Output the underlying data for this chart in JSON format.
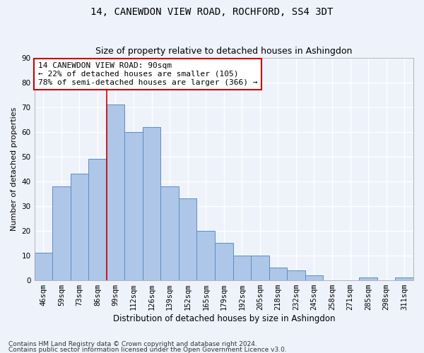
{
  "title": "14, CANEWDON VIEW ROAD, ROCHFORD, SS4 3DT",
  "subtitle": "Size of property relative to detached houses in Ashingdon",
  "xlabel": "Distribution of detached houses by size in Ashingdon",
  "ylabel": "Number of detached properties",
  "categories": [
    "46sqm",
    "59sqm",
    "73sqm",
    "86sqm",
    "99sqm",
    "112sqm",
    "126sqm",
    "139sqm",
    "152sqm",
    "165sqm",
    "179sqm",
    "192sqm",
    "205sqm",
    "218sqm",
    "232sqm",
    "245sqm",
    "258sqm",
    "271sqm",
    "285sqm",
    "298sqm",
    "311sqm"
  ],
  "values": [
    11,
    38,
    43,
    49,
    71,
    60,
    62,
    38,
    33,
    20,
    15,
    10,
    10,
    5,
    4,
    2,
    0,
    0,
    1,
    0,
    1
  ],
  "bar_color": "#aec6e8",
  "bar_edge_color": "#5a8fc2",
  "background_color": "#eef2fb",
  "grid_color": "#ffffff",
  "property_line_x": 3.5,
  "annotation_line1": "14 CANEWDON VIEW ROAD: 90sqm",
  "annotation_line2": "← 22% of detached houses are smaller (105)",
  "annotation_line3": "78% of semi-detached houses are larger (366) →",
  "annotation_box_color": "#ffffff",
  "annotation_box_edge": "#cc0000",
  "annotation_text_color": "#000000",
  "vline_color": "#cc0000",
  "ylim": [
    0,
    90
  ],
  "yticks": [
    0,
    10,
    20,
    30,
    40,
    50,
    60,
    70,
    80,
    90
  ],
  "footer1": "Contains HM Land Registry data © Crown copyright and database right 2024.",
  "footer2": "Contains public sector information licensed under the Open Government Licence v3.0.",
  "title_fontsize": 10,
  "subtitle_fontsize": 9,
  "xlabel_fontsize": 8.5,
  "ylabel_fontsize": 8,
  "tick_fontsize": 7.5,
  "annotation_fontsize": 8,
  "footer_fontsize": 6.5
}
